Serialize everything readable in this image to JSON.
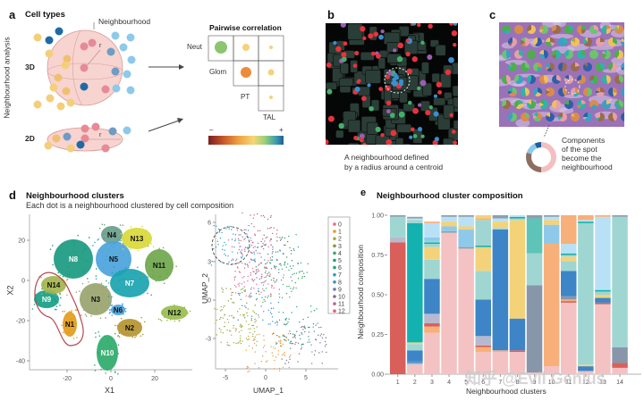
{
  "panel_a": {
    "letter": "a",
    "title": "Cell types",
    "neighbourhood_label": "Neighbourhood",
    "side_label": "Neighbourhood analysis",
    "row_3d": "3D",
    "row_2d": "2D",
    "radius_label": "r",
    "correlation_title": "Pairwise correlation",
    "matrix_row_labels": [
      "Neut",
      "Glom",
      "PT"
    ],
    "matrix_col_label": "TAL",
    "colorbar_min": "–",
    "colorbar_max": "+",
    "colorbar_colors": [
      "#7a1f1f",
      "#c8572a",
      "#f0a040",
      "#f3d778",
      "#9ccf7a",
      "#3d9bb0",
      "#1f5f99"
    ]
  },
  "panel_b": {
    "letter": "b",
    "caption_line1": "A neighbourhood defined",
    "caption_line2": "by a radius around a centroid"
  },
  "panel_c": {
    "letter": "c",
    "caption_line1": "Components",
    "caption_line2": "of the spot",
    "caption_line3": "become the",
    "caption_line4": "neighbourhood",
    "donut_colors": [
      "#f4bfc0",
      "#8d6e63",
      "#8ec9ea",
      "#1d5fa0"
    ]
  },
  "panel_d": {
    "letter": "d",
    "title": "Neighbourhood clusters",
    "subtitle": "Each dot is a neighbourhood clustered by cell composition",
    "tsne": {
      "xlabel": "X1",
      "ylabel": "X2",
      "xticks": [
        "-20",
        "0",
        "20"
      ],
      "yticks": [
        "20",
        "0",
        "-20",
        "-40"
      ],
      "clusters": [
        {
          "label": "N1",
          "color": "#e39b1d"
        },
        {
          "label": "N2",
          "color": "#b59531"
        },
        {
          "label": "N3",
          "color": "#98a46e"
        },
        {
          "label": "N4",
          "color": "#6a9e8c"
        },
        {
          "label": "N5",
          "color": "#4aa3dc"
        },
        {
          "label": "N6",
          "color": "#4aa3dc"
        },
        {
          "label": "N7",
          "color": "#1aa3b0"
        },
        {
          "label": "N8",
          "color": "#1a9a80"
        },
        {
          "label": "N9",
          "color": "#16a085"
        },
        {
          "label": "N10",
          "color": "#2eab6a"
        },
        {
          "label": "N11",
          "color": "#6fa74c"
        },
        {
          "label": "N12",
          "color": "#97bd4d"
        },
        {
          "label": "N13",
          "color": "#d9d93a"
        },
        {
          "label": "N14",
          "color": "#a3b44e"
        }
      ]
    },
    "umap": {
      "xlabel": "UMAP_1",
      "ylabel": "UMAP_2",
      "xticks": [
        "-5",
        "0",
        "5"
      ],
      "yticks": [
        "6",
        "3",
        "0",
        "-3"
      ],
      "legend": [
        {
          "label": "0",
          "color": "#e46a8a"
        },
        {
          "label": "1",
          "color": "#e79a3a"
        },
        {
          "label": "2",
          "color": "#a5b03a"
        },
        {
          "label": "3",
          "color": "#7f9b3a"
        },
        {
          "label": "4",
          "color": "#3ba66b"
        },
        {
          "label": "5",
          "color": "#1e9e6e"
        },
        {
          "label": "6",
          "color": "#22a283"
        },
        {
          "label": "7",
          "color": "#2aa0c6"
        },
        {
          "label": "8",
          "color": "#3c8fc9"
        },
        {
          "label": "9",
          "color": "#6f79a8"
        },
        {
          "label": "10",
          "color": "#7b6f8f"
        },
        {
          "label": "11",
          "color": "#c0608f"
        },
        {
          "label": "12",
          "color": "#e0607a"
        }
      ]
    }
  },
  "panel_e": {
    "letter": "e",
    "title": "Neighbourhood cluster composition"
  },
  "watermark": "知乎 @Evil Genius",
  "chart_data": {
    "type": "bar",
    "stacked": true,
    "title": "Neighbourhood cluster composition",
    "xlabel": "Neighbourhood clusters",
    "ylabel": "Neighbourhood composition",
    "ylim": [
      0,
      1
    ],
    "yticks": [
      "0.00",
      "0.25",
      "0.50",
      "0.75",
      "1.00"
    ],
    "categories": [
      "1",
      "2",
      "3",
      "4",
      "5",
      "6",
      "7",
      "8",
      "9",
      "10",
      "11",
      "12",
      "13",
      "14"
    ],
    "bars": [
      [
        [
          "#d9605a",
          0.83
        ],
        [
          "#b7b9cf",
          0.03
        ],
        [
          "#9fd6d2",
          0.13
        ],
        [
          "#8aa0b0",
          0.01
        ]
      ],
      [
        [
          "#f4c2c2",
          0.06
        ],
        [
          "#b7b9cf",
          0.01
        ],
        [
          "#4a8fcc",
          0.01
        ],
        [
          "#3d85c6",
          0.07
        ],
        [
          "#9fd6d2",
          0.04
        ],
        [
          "#f3d27a",
          0.01
        ],
        [
          "#13b2b0",
          0.75
        ],
        [
          "#9fd6d2",
          0.02
        ],
        [
          "#b9e1f5",
          0.01
        ],
        [
          "#8aa0b0",
          0.01
        ]
      ],
      [
        [
          "#f4c2c2",
          0.26
        ],
        [
          "#f7b07a",
          0.04
        ],
        [
          "#d9605a",
          0.02
        ],
        [
          "#b7b9cf",
          0.06
        ],
        [
          "#3d85c6",
          0.22
        ],
        [
          "#9fd6d2",
          0.12
        ],
        [
          "#f3d27a",
          0.08
        ],
        [
          "#9fd6d2",
          0.02
        ],
        [
          "#13b2b0",
          0.01
        ],
        [
          "#9fd6d2",
          0.01
        ],
        [
          "#8ec9ea",
          0.02
        ],
        [
          "#b9e1f5",
          0.09
        ],
        [
          "#f7b07a",
          0.01
        ]
      ],
      [
        [
          "#f4c2c2",
          0.89
        ],
        [
          "#8aa0b0",
          0.01
        ],
        [
          "#8ec9ea",
          0.03
        ],
        [
          "#f3d27a",
          0.03
        ],
        [
          "#b9e1f5",
          0.03
        ],
        [
          "#8aa0b0",
          0.01
        ]
      ],
      [
        [
          "#f4c2c2",
          0.79
        ],
        [
          "#8aa0b0",
          0.01
        ],
        [
          "#8ec9ea",
          0.11
        ],
        [
          "#f3d27a",
          0.02
        ],
        [
          "#b9e1f5",
          0.06
        ],
        [
          "#8aa0b0",
          0.01
        ]
      ],
      [
        [
          "#f4c2c2",
          0.14
        ],
        [
          "#f7b07a",
          0.03
        ],
        [
          "#d9605a",
          0.01
        ],
        [
          "#b7b9cf",
          0.06
        ],
        [
          "#3d85c6",
          0.23
        ],
        [
          "#9fd6d2",
          0.18
        ],
        [
          "#f3d27a",
          0.15
        ],
        [
          "#13b2b0",
          0.01
        ],
        [
          "#9fd6d2",
          0.16
        ],
        [
          "#f7b07a",
          0.01
        ],
        [
          "#f3d27a",
          0.02
        ]
      ],
      [
        [
          "#f4c2c2",
          0.14
        ],
        [
          "#f7b07a",
          0.01
        ],
        [
          "#3d85c6",
          0.76
        ],
        [
          "#9fd6d2",
          0.01
        ],
        [
          "#f3d27a",
          0.04
        ],
        [
          "#b9e1f5",
          0.02
        ],
        [
          "#8aa0b0",
          0.02
        ]
      ],
      [
        [
          "#f4c2c2",
          0.14
        ],
        [
          "#d9605a",
          0.01
        ],
        [
          "#3d85c6",
          0.2
        ],
        [
          "#f3d27a",
          0.62
        ],
        [
          "#9fd6d2",
          0.01
        ],
        [
          "#13b2b0",
          0.01
        ],
        [
          "#b9e1f5",
          0.01
        ]
      ],
      [
        [
          "#f4c2c2",
          0.01
        ],
        [
          "#8896aa",
          0.55
        ],
        [
          "#9fd6d2",
          0.2
        ],
        [
          "#5ec4b8",
          0.22
        ],
        [
          "#8aa0b0",
          0.02
        ]
      ],
      [
        [
          "#f4c2c2",
          0.05
        ],
        [
          "#f7b07a",
          0.77
        ],
        [
          "#8ec9ea",
          0.12
        ],
        [
          "#f3d27a",
          0.03
        ],
        [
          "#b9e1f5",
          0.02
        ],
        [
          "#8aa0b0",
          0.01
        ]
      ],
      [
        [
          "#f4c2c2",
          0.45
        ],
        [
          "#d9605a",
          0.01
        ],
        [
          "#f7b07a",
          0.01
        ],
        [
          "#8896aa",
          0.02
        ],
        [
          "#3d85c6",
          0.16
        ],
        [
          "#9fd6d2",
          0.06
        ],
        [
          "#f3d27a",
          0.03
        ],
        [
          "#9fd6d2",
          0.01
        ],
        [
          "#13b2b0",
          0.01
        ],
        [
          "#b9e1f5",
          0.06
        ],
        [
          "#f7b07a",
          0.18
        ]
      ],
      [
        [
          "#f4c2c2",
          0.02
        ],
        [
          "#3d85c6",
          0.03
        ],
        [
          "#f3d27a",
          0.01
        ],
        [
          "#9fd6d2",
          0.89
        ],
        [
          "#13b2b0",
          0.01
        ],
        [
          "#b9e1f5",
          0.01
        ],
        [
          "#f7b07a",
          0.03
        ]
      ],
      [
        [
          "#f4c2c2",
          0.44
        ],
        [
          "#d9605a",
          0.01
        ],
        [
          "#3d85c6",
          0.03
        ],
        [
          "#f3d27a",
          0.02
        ],
        [
          "#9fd6d2",
          0.02
        ],
        [
          "#13b2b0",
          0.01
        ],
        [
          "#b9e1f5",
          0.46
        ],
        [
          "#f7b07a",
          0.01
        ]
      ],
      [
        [
          "#f4c2c2",
          0.04
        ],
        [
          "#d9605a",
          0.03
        ],
        [
          "#8896aa",
          0.1
        ],
        [
          "#9fd6d2",
          0.82
        ],
        [
          "#8aa0b0",
          0.01
        ]
      ]
    ]
  }
}
